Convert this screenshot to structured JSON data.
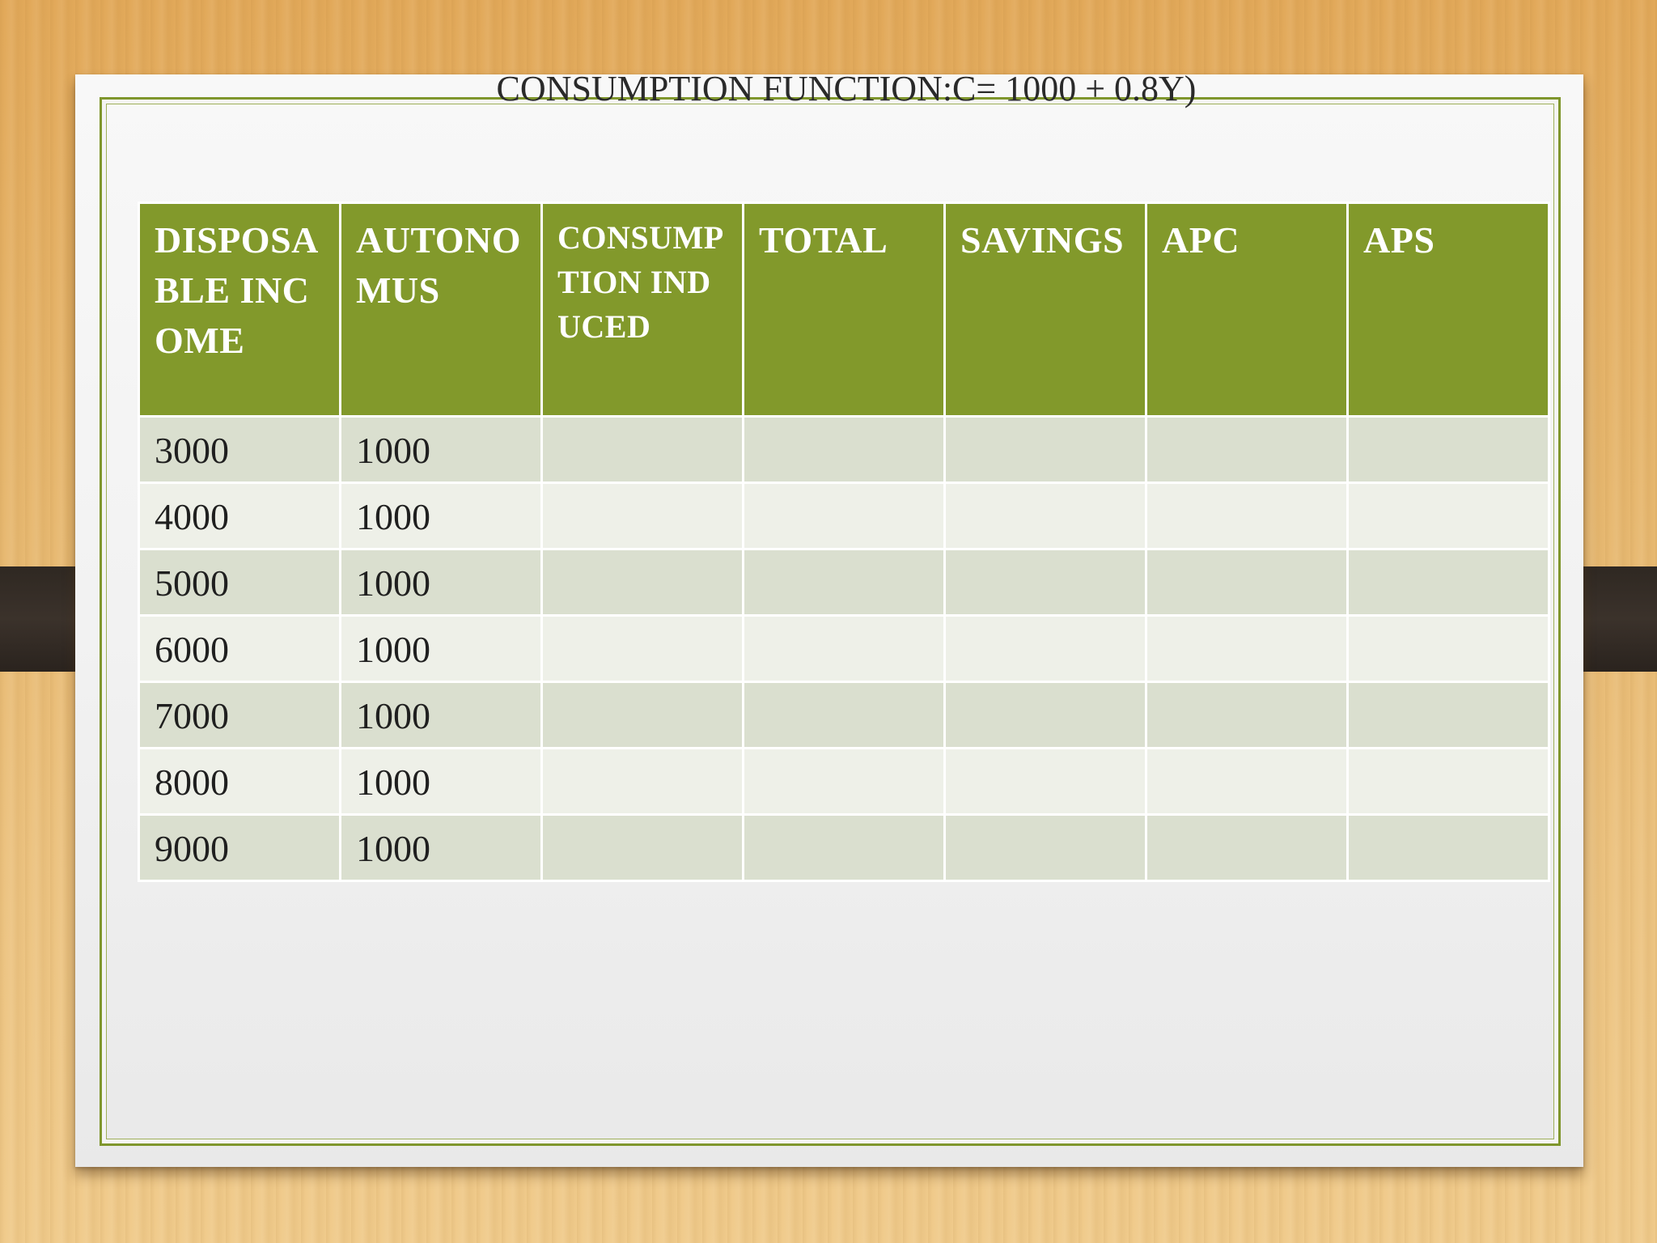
{
  "slide": {
    "title": "CONSUMPTION FUNCTION:C= 1000 + 0.8Y)"
  },
  "table": {
    "headers": [
      "DISPOSABLE INCOME",
      "AUTONOMUS",
      "CONSUMPTION INDUCED",
      "TOTAL",
      "SAVINGS",
      "APC",
      "APS"
    ],
    "rows": [
      [
        "3000",
        "1000",
        "",
        "",
        "",
        "",
        ""
      ],
      [
        "4000",
        "1000",
        "",
        "",
        "",
        "",
        ""
      ],
      [
        "5000",
        "1000",
        "",
        "",
        "",
        "",
        ""
      ],
      [
        "6000",
        "1000",
        "",
        "",
        "",
        "",
        ""
      ],
      [
        "7000",
        "1000",
        "",
        "",
        "",
        "",
        ""
      ],
      [
        "8000",
        "1000",
        "",
        "",
        "",
        "",
        ""
      ],
      [
        "9000",
        "1000",
        "",
        "",
        "",
        "",
        ""
      ]
    ]
  },
  "colors": {
    "header_green": "#82992b",
    "row_odd": "#dadfcf",
    "row_even": "#eef0e8",
    "frame_green": "#7f962c"
  }
}
